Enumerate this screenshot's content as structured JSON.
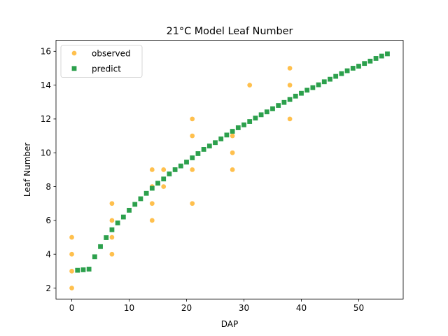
{
  "chart_data": {
    "type": "scatter",
    "title": "21°C Model Leaf Number",
    "xlabel": "DAP",
    "ylabel": "Leaf Number",
    "xlim": [
      -2.75,
      57.75
    ],
    "ylim": [
      1.35,
      16.65
    ],
    "xticks": [
      0,
      10,
      20,
      30,
      40,
      50
    ],
    "yticks": [
      2,
      4,
      6,
      8,
      10,
      12,
      14,
      16
    ],
    "grid": false,
    "legend_position": "upper left",
    "series": [
      {
        "name": "observed",
        "marker": "circle",
        "color": "#ffc04d",
        "x": [
          0,
          0,
          0,
          0,
          7,
          7,
          7,
          7,
          14,
          14,
          14,
          14,
          16,
          16,
          21,
          21,
          21,
          21,
          28,
          28,
          28,
          31,
          38,
          38,
          38
        ],
        "y": [
          5,
          4,
          3,
          2,
          7,
          6,
          5,
          4,
          9,
          8,
          7,
          6,
          9,
          8,
          12,
          11,
          9,
          7,
          11,
          10,
          9,
          14,
          15,
          14,
          12
        ]
      },
      {
        "name": "predict",
        "marker": "square",
        "color": "#2ca04c",
        "x": [
          1,
          2,
          3,
          4,
          5,
          6,
          7,
          8,
          9,
          10,
          11,
          12,
          13,
          14,
          15,
          16,
          17,
          18,
          19,
          20,
          21,
          22,
          23,
          24,
          25,
          26,
          27,
          28,
          29,
          30,
          31,
          32,
          33,
          34,
          35,
          36,
          37,
          38,
          39,
          40,
          41,
          42,
          43,
          44,
          45,
          46,
          47,
          48,
          49,
          50,
          51,
          52,
          53,
          54,
          55
        ],
        "y": [
          3.05,
          3.08,
          3.12,
          3.85,
          4.45,
          4.98,
          5.45,
          5.85,
          6.2,
          6.6,
          6.95,
          7.28,
          7.6,
          7.9,
          8.2,
          8.45,
          8.75,
          9.0,
          9.22,
          9.45,
          9.7,
          9.95,
          10.2,
          10.4,
          10.6,
          10.82,
          11.05,
          11.27,
          11.48,
          11.65,
          11.85,
          12.05,
          12.25,
          12.42,
          12.6,
          12.8,
          12.98,
          13.15,
          13.35,
          13.52,
          13.7,
          13.85,
          14.02,
          14.2,
          14.35,
          14.52,
          14.68,
          14.85,
          15.0,
          15.12,
          15.28,
          15.42,
          15.58,
          15.72,
          15.85
        ]
      }
    ]
  }
}
